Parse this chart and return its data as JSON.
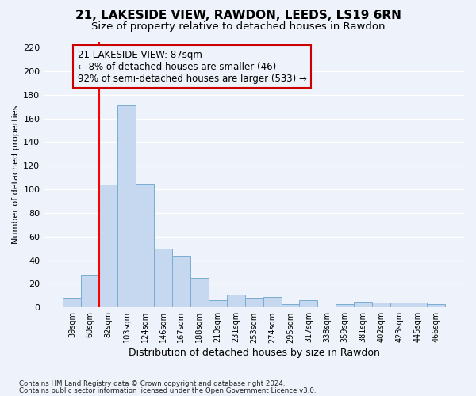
{
  "title1": "21, LAKESIDE VIEW, RAWDON, LEEDS, LS19 6RN",
  "title2": "Size of property relative to detached houses in Rawdon",
  "xlabel": "Distribution of detached houses by size in Rawdon",
  "ylabel": "Number of detached properties",
  "footnote1": "Contains HM Land Registry data © Crown copyright and database right 2024.",
  "footnote2": "Contains public sector information licensed under the Open Government Licence v3.0.",
  "categories": [
    "39sqm",
    "60sqm",
    "82sqm",
    "103sqm",
    "124sqm",
    "146sqm",
    "167sqm",
    "188sqm",
    "210sqm",
    "231sqm",
    "253sqm",
    "274sqm",
    "295sqm",
    "317sqm",
    "338sqm",
    "359sqm",
    "381sqm",
    "402sqm",
    "423sqm",
    "445sqm",
    "466sqm"
  ],
  "values": [
    8,
    28,
    104,
    171,
    105,
    50,
    44,
    25,
    6,
    11,
    8,
    9,
    3,
    6,
    0,
    3,
    5,
    4,
    4,
    4,
    3
  ],
  "bar_color": "#c5d8f0",
  "bar_edge_color": "#7aadd4",
  "property_line_x": 1.5,
  "annotation_title": "21 LAKESIDE VIEW: 87sqm",
  "annotation_line1": "← 8% of detached houses are smaller (46)",
  "annotation_line2": "92% of semi-detached houses are larger (533) →",
  "ylim": [
    0,
    225
  ],
  "yticks": [
    0,
    20,
    40,
    60,
    80,
    100,
    120,
    140,
    160,
    180,
    200,
    220
  ],
  "background_color": "#eef2fa",
  "grid_color": "#ffffff",
  "title_fontsize": 11,
  "subtitle_fontsize": 9.5,
  "tick_fontsize": 8,
  "ylabel_fontsize": 8,
  "xlabel_fontsize": 9,
  "annotation_box_color": "#cc0000",
  "annotation_fontsize": 8.5
}
